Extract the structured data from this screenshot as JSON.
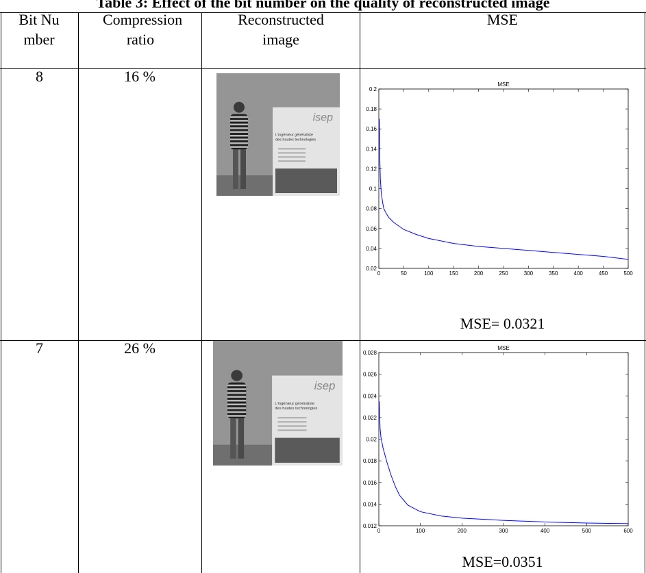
{
  "title": "Table 3: Effect of the bit number on the quality of reconstructed image",
  "table": {
    "header": [
      "Bit Number",
      "Compression ratio",
      "Reconstructed image",
      "MSE"
    ],
    "rows": [
      {
        "bit": "8",
        "ratio": "16 %",
        "image_text": [
          "isep",
          "L'ingénieur généraliste",
          "des hautes technologies"
        ],
        "chart": {
          "type": "line",
          "title": "MSE",
          "color": "#0000ff",
          "x": [
            1,
            2,
            3,
            5,
            8,
            10,
            15,
            20,
            30,
            50,
            75,
            100,
            150,
            200,
            250,
            300,
            350,
            400,
            450,
            500
          ],
          "values": [
            0.17,
            0.13,
            0.11,
            0.095,
            0.085,
            0.08,
            0.075,
            0.071,
            0.066,
            0.059,
            0.054,
            0.05,
            0.045,
            0.042,
            0.04,
            0.038,
            0.036,
            0.034,
            0.032,
            0.029
          ],
          "xlim": [
            0,
            500
          ],
          "ylim": [
            0.02,
            0.2
          ],
          "xticks": [
            0,
            50,
            100,
            150,
            200,
            250,
            300,
            350,
            400,
            450,
            500
          ],
          "yticks": [
            0.02,
            0.04,
            0.06,
            0.08,
            0.1,
            0.12,
            0.14,
            0.16,
            0.18,
            0.2
          ]
        },
        "mse": "MSE= 0.0321"
      },
      {
        "bit": "7",
        "ratio": "26 %",
        "image_text": [
          "isep",
          "L'ingénieur généraliste",
          "des hautes technologies"
        ],
        "chart": {
          "type": "line",
          "title": "MSE",
          "color": "#0000ff",
          "x": [
            1,
            3,
            5,
            10,
            20,
            30,
            40,
            50,
            70,
            100,
            150,
            200,
            300,
            400,
            500,
            600
          ],
          "values": [
            0.0235,
            0.021,
            0.0202,
            0.0192,
            0.0178,
            0.0166,
            0.0156,
            0.0148,
            0.0139,
            0.0133,
            0.0129,
            0.0127,
            0.0125,
            0.01235,
            0.01225,
            0.0122
          ],
          "xlim": [
            0,
            600
          ],
          "ylim": [
            0.012,
            0.028
          ],
          "xticks": [
            0,
            100,
            200,
            300,
            400,
            500,
            600
          ],
          "yticks": [
            0.012,
            0.014,
            0.016,
            0.018,
            0.02,
            0.022,
            0.024,
            0.026,
            0.028
          ]
        },
        "mse": "MSE=0.0351"
      }
    ]
  }
}
